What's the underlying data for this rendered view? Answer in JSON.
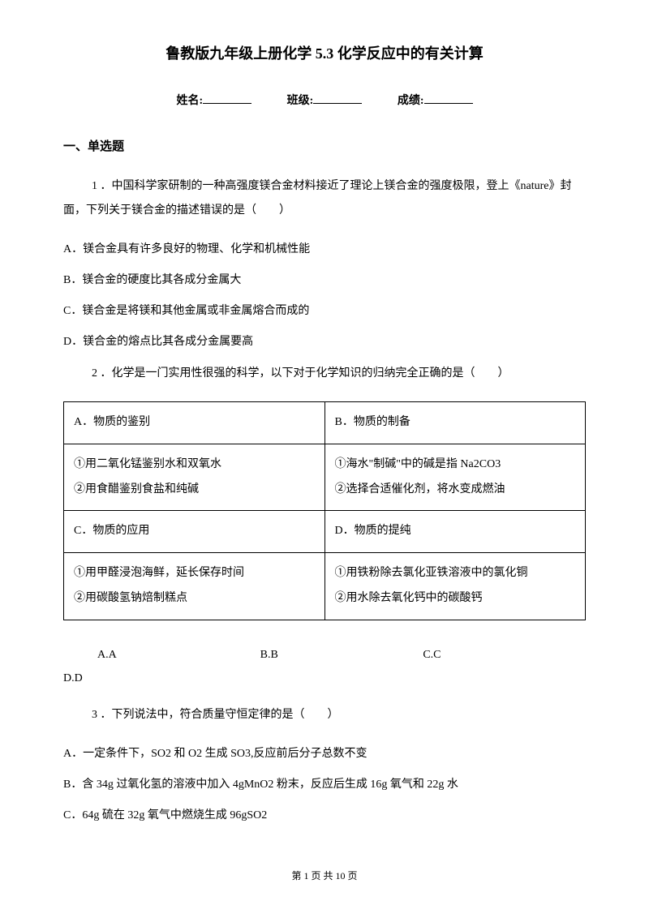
{
  "title": "鲁教版九年级上册化学 5.3 化学反应中的有关计算",
  "info": {
    "name_label": "姓名:",
    "class_label": "班级:",
    "score_label": "成绩:"
  },
  "section_heading": "一、单选题",
  "q1": {
    "text": "1 ．中国科学家研制的一种高强度镁合金材料接近了理论上镁合金的强度极限，登上《nature》封面，下列关于镁合金的描述错误的是（　　）",
    "optA": "A．镁合金具有许多良好的物理、化学和机械性能",
    "optB": "B．镁合金的硬度比其各成分金属大",
    "optC": "C．镁合金是将镁和其他金属或非金属熔合而成的",
    "optD": "D．镁合金的熔点比其各成分金属要高"
  },
  "q2": {
    "text": "2 ．化学是一门实用性很强的科学，以下对于化学知识的归纳完全正确的是（　　）",
    "table": {
      "cellA_header": "A．物质的鉴别",
      "cellB_header": "B．物质的制备",
      "cellA_body1": "①用二氧化锰鉴别水和双氧水",
      "cellA_body2": "②用食醋鉴别食盐和纯碱",
      "cellB_body1": "①海水\"制碱\"中的碱是指 Na2CO3",
      "cellB_body2": "②选择合适催化剂，将水变成燃油",
      "cellC_header": "C．物质的应用",
      "cellD_header": "D．物质的提纯",
      "cellC_body1": "①用甲醛浸泡海鲜，延长保存时间",
      "cellC_body2": "②用碳酸氢钠焙制糕点",
      "cellD_body1": "①用铁粉除去氯化亚铁溶液中的氯化铜",
      "cellD_body2": "②用水除去氧化钙中的碳酸钙"
    },
    "choiceA": "A.A",
    "choiceB": "B.B",
    "choiceC": "C.C",
    "choiceD": "D.D"
  },
  "q3": {
    "text": "3 ．下列说法中，符合质量守恒定律的是（　　）",
    "optA": "A．一定条件下，SO2 和 O2 生成 SO3,反应前后分子总数不变",
    "optB": "B．含 34g 过氧化氢的溶液中加入 4gMnO2 粉末，反应后生成 16g 氧气和 22g 水",
    "optC": "C．64g 硫在 32g 氧气中燃烧生成 96gSO2"
  },
  "footer": {
    "page_label": "第 1 页 共 10 页"
  }
}
